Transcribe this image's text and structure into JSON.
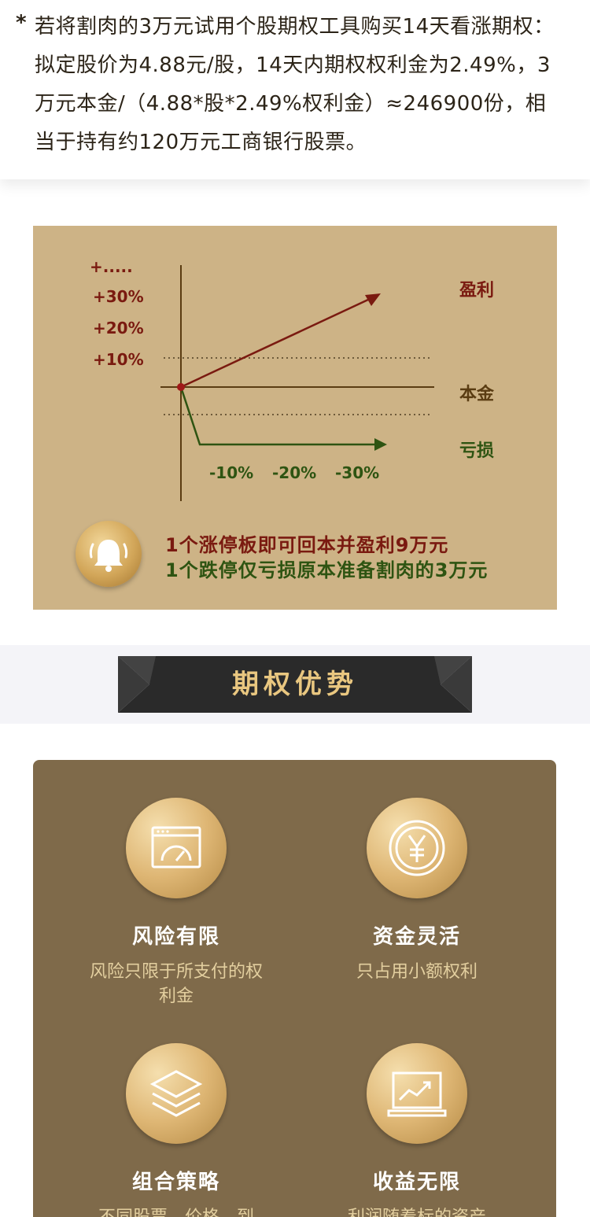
{
  "note": {
    "star": "*",
    "text": "若将割肉的3万元试用个股期权工具购买14天看涨期权：拟定股价为4.88元/股，14天内期权权利金为2.49%，3万元本金/（4.88*股*2.49%权利金）≈246900份，相当于持有约120万元工商银行股票。"
  },
  "diagram": {
    "y_ticks": [
      "+.....",
      "+30%",
      "+20%",
      "+10%"
    ],
    "x_ticks": [
      "-10%",
      "-20%",
      "-30%"
    ],
    "label_profit": "盈利",
    "label_principal": "本金",
    "label_loss": "亏损",
    "alert_1": "1个涨停板即可回本并盈利9万元",
    "alert_2": "1个跌停仅亏损原本准备割肉的3万元",
    "colors": {
      "profit": "#7a1a10",
      "principal": "#5a3c12",
      "loss": "#2e5412",
      "panel": "#cdb386"
    }
  },
  "section": {
    "title": "期权优势"
  },
  "features": [
    {
      "icon": "gauge-icon",
      "title": "风险有限",
      "desc": "风险只限于所支付的权利金"
    },
    {
      "icon": "yen-coin-icon",
      "title": "资金灵活",
      "desc": "只占用小额权利"
    },
    {
      "icon": "layers-icon",
      "title": "组合策略",
      "desc": "不同股票、价格、到"
    },
    {
      "icon": "chart-monitor-icon",
      "title": "收益无限",
      "desc": "利润随着标的资产"
    }
  ]
}
